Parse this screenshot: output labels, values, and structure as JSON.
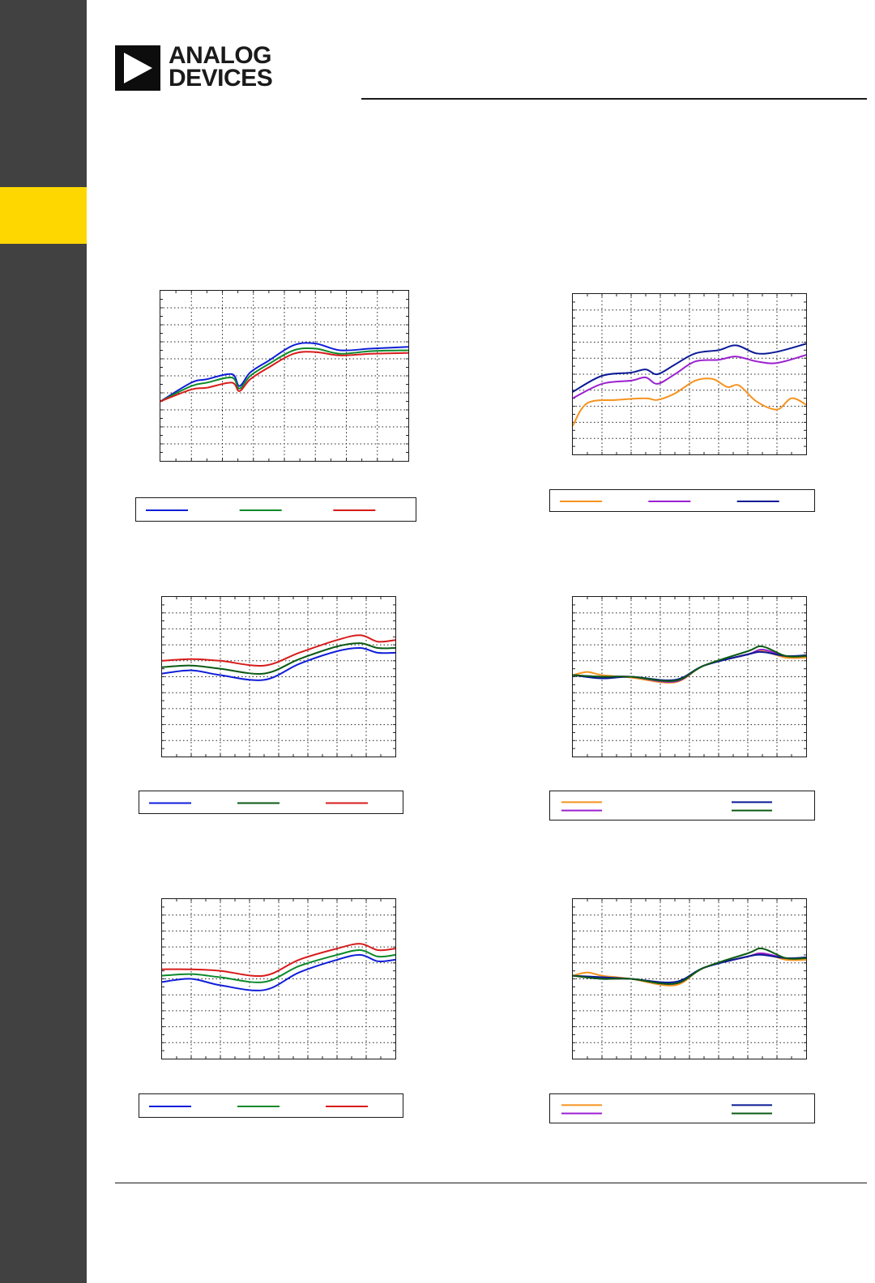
{
  "brand": {
    "line1": "ANALOG",
    "line2": "DEVICES"
  },
  "colors": {
    "sidebar": "#414141",
    "tab": "#ffd700",
    "blue": "#0f1ed8",
    "green": "#0a8a2a",
    "red": "#d81b1b",
    "orange": "#f5931f",
    "purple": "#9b1fd0",
    "navy": "#0a1a96",
    "darkgreen": "#0a5a14"
  },
  "chart_data": [
    {
      "type": "line",
      "grid": true,
      "legend": "below",
      "series": [
        {
          "color": "#0f1ed8",
          "values": [
            [
              0,
              3.5
            ],
            [
              1,
              4.6
            ],
            [
              1.5,
              4.8
            ],
            [
              2.3,
              5.1
            ],
            [
              2.55,
              4.4
            ],
            [
              2.9,
              5.2
            ],
            [
              3.5,
              5.9
            ],
            [
              4.3,
              6.8
            ],
            [
              5.0,
              6.9
            ],
            [
              5.8,
              6.5
            ],
            [
              6.8,
              6.6
            ],
            [
              8,
              6.7
            ]
          ]
        },
        {
          "color": "#0a8a2a",
          "values": [
            [
              0,
              3.5
            ],
            [
              1,
              4.4
            ],
            [
              1.5,
              4.6
            ],
            [
              2.3,
              4.9
            ],
            [
              2.55,
              4.25
            ],
            [
              2.9,
              5.0
            ],
            [
              3.5,
              5.7
            ],
            [
              4.3,
              6.5
            ],
            [
              5.0,
              6.6
            ],
            [
              5.8,
              6.3
            ],
            [
              6.8,
              6.45
            ],
            [
              8,
              6.5
            ]
          ]
        },
        {
          "color": "#d81b1b",
          "values": [
            [
              0,
              3.5
            ],
            [
              1,
              4.2
            ],
            [
              1.5,
              4.3
            ],
            [
              2.3,
              4.6
            ],
            [
              2.55,
              4.1
            ],
            [
              2.9,
              4.8
            ],
            [
              3.5,
              5.5
            ],
            [
              4.3,
              6.3
            ],
            [
              5.0,
              6.4
            ],
            [
              5.8,
              6.2
            ],
            [
              6.8,
              6.3
            ],
            [
              8,
              6.35
            ]
          ]
        }
      ]
    },
    {
      "type": "line",
      "grid": true,
      "legend": "below",
      "series": [
        {
          "color": "#f5931f",
          "values": [
            [
              0,
              1.8
            ],
            [
              0.5,
              3.2
            ],
            [
              1.5,
              3.4
            ],
            [
              2.5,
              3.5
            ],
            [
              2.9,
              3.4
            ],
            [
              3.5,
              3.8
            ],
            [
              4.2,
              4.6
            ],
            [
              4.8,
              4.7
            ],
            [
              5.3,
              4.2
            ],
            [
              5.7,
              4.3
            ],
            [
              6.3,
              3.3
            ],
            [
              7.0,
              2.8
            ],
            [
              7.5,
              3.5
            ],
            [
              8,
              3.1
            ]
          ]
        },
        {
          "color": "#9b1fd0",
          "values": [
            [
              0,
              3.5
            ],
            [
              1,
              4.4
            ],
            [
              2,
              4.6
            ],
            [
              2.5,
              4.8
            ],
            [
              2.9,
              4.4
            ],
            [
              3.5,
              5.0
            ],
            [
              4.2,
              5.8
            ],
            [
              5.0,
              5.9
            ],
            [
              5.6,
              6.1
            ],
            [
              6.3,
              5.8
            ],
            [
              7.0,
              5.7
            ],
            [
              8,
              6.2
            ]
          ]
        },
        {
          "color": "#0a1a96",
          "values": [
            [
              0,
              3.9
            ],
            [
              1,
              4.9
            ],
            [
              2,
              5.1
            ],
            [
              2.5,
              5.3
            ],
            [
              2.9,
              5.0
            ],
            [
              3.5,
              5.6
            ],
            [
              4.2,
              6.3
            ],
            [
              5.0,
              6.5
            ],
            [
              5.6,
              6.8
            ],
            [
              6.3,
              6.3
            ],
            [
              7.0,
              6.4
            ],
            [
              8,
              6.9
            ]
          ]
        }
      ]
    },
    {
      "type": "line",
      "grid": true,
      "legend": "below",
      "series": [
        {
          "color": "#0f1ed8",
          "values": [
            [
              0,
              5.2
            ],
            [
              1,
              5.4
            ],
            [
              2,
              5.1
            ],
            [
              3.5,
              4.8
            ],
            [
              4.7,
              5.8
            ],
            [
              6.0,
              6.6
            ],
            [
              6.8,
              6.8
            ],
            [
              7.4,
              6.5
            ],
            [
              8,
              6.5
            ]
          ]
        },
        {
          "color": "#0a5a14",
          "values": [
            [
              0,
              5.6
            ],
            [
              1,
              5.7
            ],
            [
              2,
              5.5
            ],
            [
              3.5,
              5.2
            ],
            [
              4.7,
              6.1
            ],
            [
              6.0,
              6.9
            ],
            [
              6.8,
              7.1
            ],
            [
              7.4,
              6.8
            ],
            [
              8,
              6.8
            ]
          ]
        },
        {
          "color": "#d81b1b",
          "values": [
            [
              0,
              6.0
            ],
            [
              1,
              6.1
            ],
            [
              2,
              6.0
            ],
            [
              3.5,
              5.7
            ],
            [
              4.7,
              6.5
            ],
            [
              6.0,
              7.3
            ],
            [
              6.8,
              7.6
            ],
            [
              7.4,
              7.2
            ],
            [
              8,
              7.3
            ]
          ]
        }
      ]
    },
    {
      "type": "line",
      "grid": true,
      "legend": "below",
      "series": [
        {
          "color": "#f5931f",
          "values": [
            [
              0,
              5.1
            ],
            [
              0.5,
              5.3
            ],
            [
              1,
              5.1
            ],
            [
              2,
              4.95
            ],
            [
              3.5,
              4.65
            ],
            [
              4.5,
              5.7
            ],
            [
              6.0,
              6.4
            ],
            [
              6.5,
              6.6
            ],
            [
              7.3,
              6.2
            ],
            [
              8,
              6.2
            ]
          ]
        },
        {
          "color": "#9b1fd0",
          "values": [
            [
              0,
              5.1
            ],
            [
              1,
              5.0
            ],
            [
              2,
              5.0
            ],
            [
              3.5,
              4.7
            ],
            [
              4.5,
              5.7
            ],
            [
              6.0,
              6.4
            ],
            [
              6.5,
              6.7
            ],
            [
              7.3,
              6.3
            ],
            [
              8,
              6.3
            ]
          ]
        },
        {
          "color": "#0a1a96",
          "values": [
            [
              0,
              5.1
            ],
            [
              1,
              4.9
            ],
            [
              2,
              5.0
            ],
            [
              3.5,
              4.8
            ],
            [
              4.5,
              5.7
            ],
            [
              6.0,
              6.4
            ],
            [
              6.5,
              6.55
            ],
            [
              7.3,
              6.3
            ],
            [
              8,
              6.35
            ]
          ]
        },
        {
          "color": "#0a5a14",
          "values": [
            [
              0,
              5.1
            ],
            [
              1,
              5.0
            ],
            [
              2,
              5.0
            ],
            [
              3.5,
              4.75
            ],
            [
              4.5,
              5.7
            ],
            [
              6.0,
              6.6
            ],
            [
              6.5,
              6.9
            ],
            [
              7.3,
              6.3
            ],
            [
              8,
              6.3
            ]
          ]
        }
      ]
    },
    {
      "type": "line",
      "grid": true,
      "legend": "below",
      "series": [
        {
          "color": "#0f1ed8",
          "values": [
            [
              0,
              4.8
            ],
            [
              1,
              5.0
            ],
            [
              2,
              4.6
            ],
            [
              3.5,
              4.3
            ],
            [
              4.7,
              5.4
            ],
            [
              6.0,
              6.2
            ],
            [
              6.8,
              6.5
            ],
            [
              7.4,
              6.1
            ],
            [
              8,
              6.2
            ]
          ]
        },
        {
          "color": "#0a8a2a",
          "values": [
            [
              0,
              5.2
            ],
            [
              1,
              5.3
            ],
            [
              2,
              5.1
            ],
            [
              3.5,
              4.8
            ],
            [
              4.7,
              5.8
            ],
            [
              6.0,
              6.5
            ],
            [
              6.8,
              6.8
            ],
            [
              7.4,
              6.4
            ],
            [
              8,
              6.5
            ]
          ]
        },
        {
          "color": "#d81b1b",
          "values": [
            [
              0,
              5.6
            ],
            [
              1,
              5.6
            ],
            [
              2,
              5.5
            ],
            [
              3.5,
              5.2
            ],
            [
              4.7,
              6.2
            ],
            [
              6.0,
              6.9
            ],
            [
              6.8,
              7.2
            ],
            [
              7.4,
              6.8
            ],
            [
              8,
              6.9
            ]
          ]
        }
      ]
    },
    {
      "type": "line",
      "grid": true,
      "legend": "below",
      "series": [
        {
          "color": "#f5931f",
          "values": [
            [
              0,
              5.2
            ],
            [
              0.5,
              5.4
            ],
            [
              1,
              5.2
            ],
            [
              2,
              5.0
            ],
            [
              3.5,
              4.6
            ],
            [
              4.5,
              5.7
            ],
            [
              6.0,
              6.4
            ],
            [
              6.5,
              6.6
            ],
            [
              7.3,
              6.2
            ],
            [
              8,
              6.2
            ]
          ]
        },
        {
          "color": "#9b1fd0",
          "values": [
            [
              0,
              5.2
            ],
            [
              1,
              5.0
            ],
            [
              2,
              5.0
            ],
            [
              3.5,
              4.7
            ],
            [
              4.5,
              5.7
            ],
            [
              6.0,
              6.4
            ],
            [
              6.5,
              6.6
            ],
            [
              7.3,
              6.3
            ],
            [
              8,
              6.3
            ]
          ]
        },
        {
          "color": "#0a1a96",
          "values": [
            [
              0,
              5.2
            ],
            [
              1,
              5.1
            ],
            [
              2,
              5.0
            ],
            [
              3.5,
              4.8
            ],
            [
              4.5,
              5.7
            ],
            [
              6.0,
              6.4
            ],
            [
              6.5,
              6.5
            ],
            [
              7.3,
              6.3
            ],
            [
              8,
              6.35
            ]
          ]
        },
        {
          "color": "#0a5a14",
          "values": [
            [
              0,
              5.2
            ],
            [
              1,
              5.0
            ],
            [
              2,
              5.0
            ],
            [
              3.5,
              4.7
            ],
            [
              4.5,
              5.7
            ],
            [
              6.0,
              6.6
            ],
            [
              6.5,
              6.9
            ],
            [
              7.3,
              6.3
            ],
            [
              8,
              6.3
            ]
          ]
        }
      ]
    }
  ]
}
